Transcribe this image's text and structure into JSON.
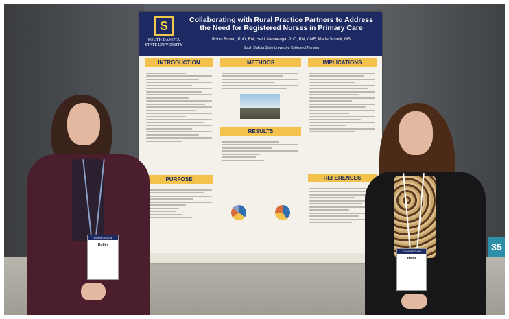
{
  "poster": {
    "logo_mark": "S",
    "logo_text_line1": "SOUTH DAKOTA",
    "logo_text_line2": "STATE UNIVERSITY",
    "title": "Collaborating with Rural Practice Partners to Address the Need for Registered Nurses in Primary Care",
    "authors": "Robin Brown, PhD, RN; Heidi Mennenga, PhD, RN, CNE; Marie Schmit, MS",
    "affiliation": "South Dakota State University, College of Nursing",
    "sections": {
      "introduction": "INTRODUCTION",
      "methods": "METHODS",
      "implications": "IMPLICATIONS",
      "results": "RESULTS",
      "purpose": "PURPOSE",
      "references": "REFERENCES"
    }
  },
  "badges": {
    "left": {
      "band": "CONVENTION",
      "name": "Robin"
    },
    "right": {
      "band": "CONVENTION",
      "name": "Heidi"
    }
  },
  "booth_number": "35",
  "colors": {
    "header_navy": "#1d2a63",
    "section_gold": "#f2c24c",
    "booth_teal": "#2d8fa8"
  }
}
